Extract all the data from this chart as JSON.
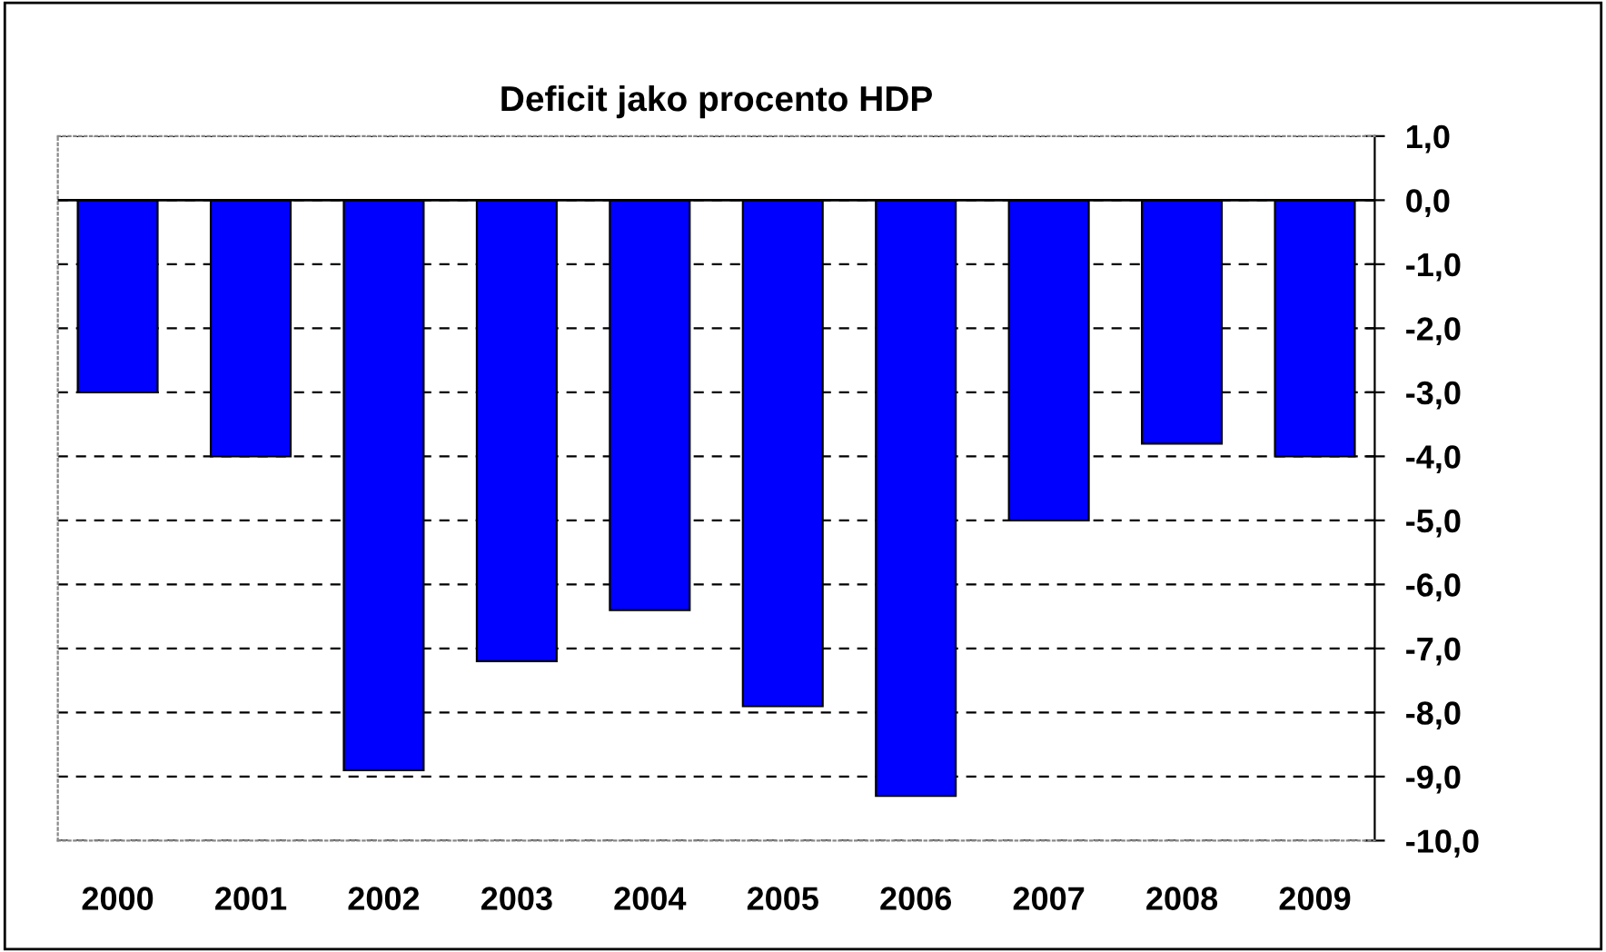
{
  "chart_data": {
    "type": "bar",
    "title": "Deficit jako procento HDP",
    "categories": [
      "2000",
      "2001",
      "2002",
      "2003",
      "2004",
      "2005",
      "2006",
      "2007",
      "2008",
      "2009"
    ],
    "values": [
      -3.0,
      -4.0,
      -8.9,
      -7.2,
      -6.4,
      -7.9,
      -9.3,
      -5.0,
      -3.8,
      -4.0
    ],
    "color": "#0000ff",
    "ylim": [
      -10.0,
      1.0
    ],
    "yticks": [
      {
        "value": 1,
        "label": "1,0"
      },
      {
        "value": 0,
        "label": "0,0"
      },
      {
        "value": -1,
        "label": "-1,0"
      },
      {
        "value": -2,
        "label": "-2,0"
      },
      {
        "value": -3,
        "label": "-3,0"
      },
      {
        "value": -4,
        "label": "-4,0"
      },
      {
        "value": -5,
        "label": "-5,0"
      },
      {
        "value": -6,
        "label": "-6,0"
      },
      {
        "value": -7,
        "label": "-7,0"
      },
      {
        "value": -8,
        "label": "-8,0"
      },
      {
        "value": -9,
        "label": "-9,0"
      },
      {
        "value": -10,
        "label": "-10,0"
      }
    ],
    "grid": "y"
  }
}
